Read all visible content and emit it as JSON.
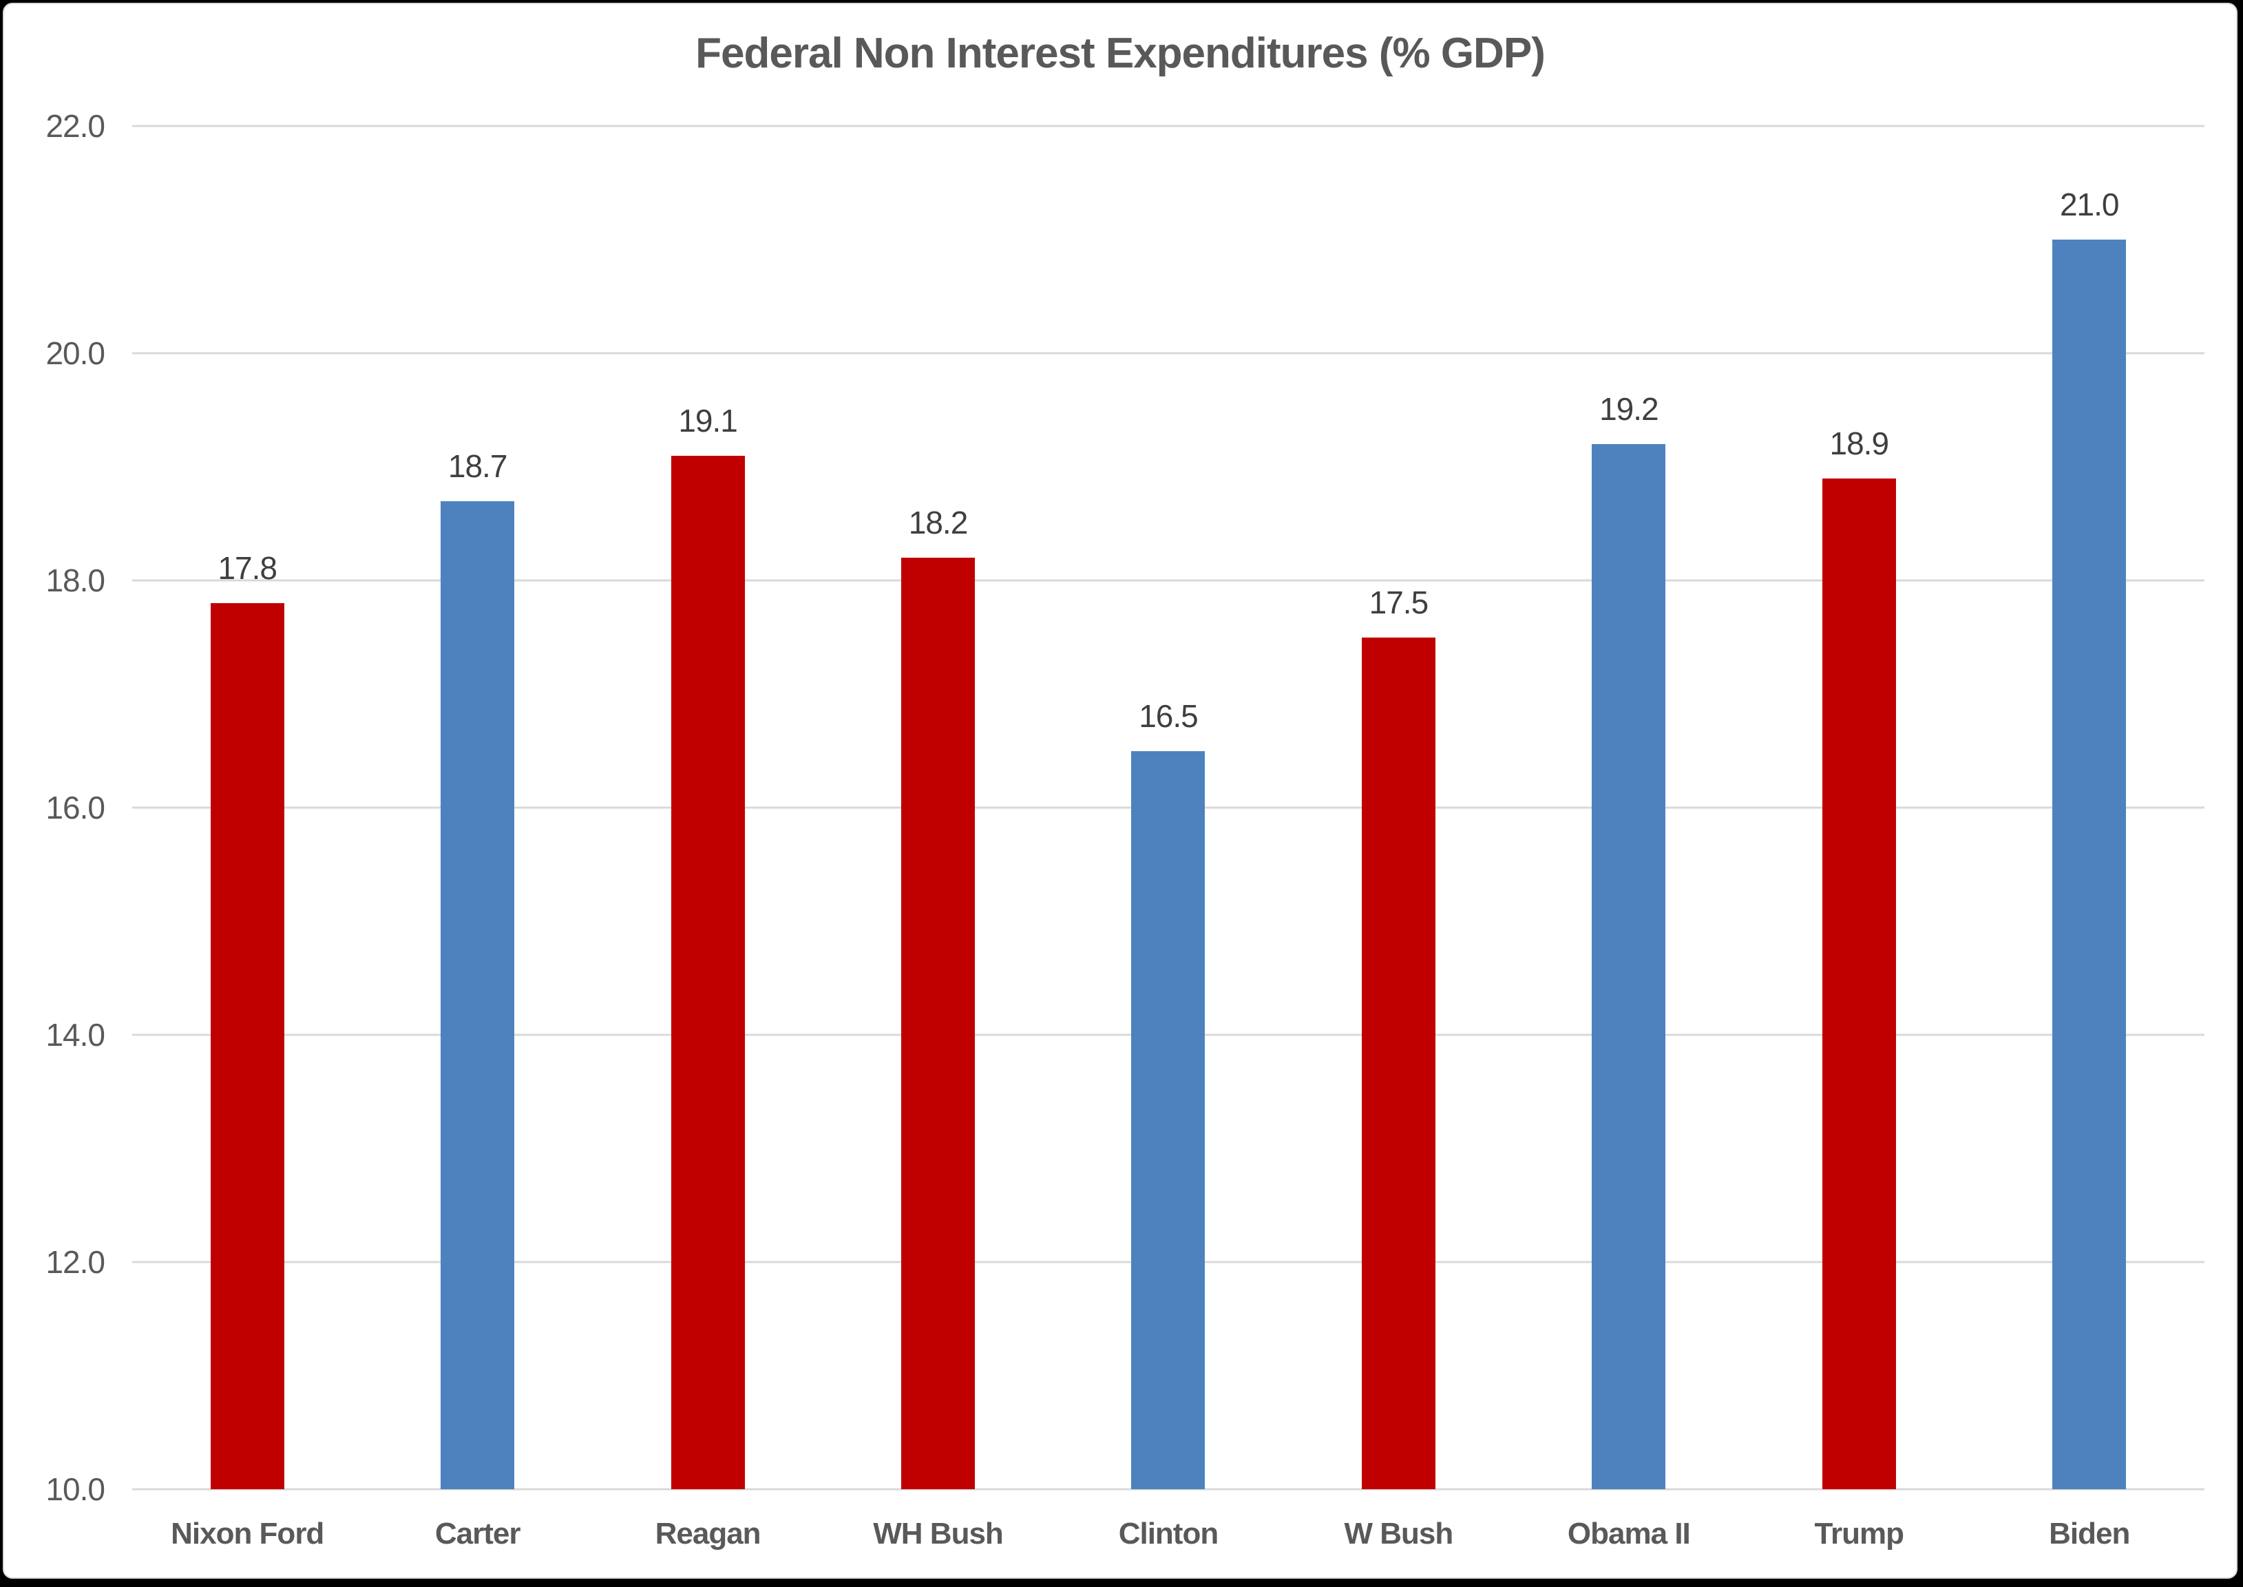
{
  "chart_data": {
    "type": "bar",
    "title": "Federal Non Interest Expenditures (% GDP)",
    "categories": [
      "Nixon Ford",
      "Carter",
      "Reagan",
      "WH Bush",
      "Clinton",
      "W Bush",
      "Obama II",
      "Trump",
      "Biden"
    ],
    "values": [
      17.8,
      18.7,
      19.1,
      18.2,
      16.5,
      17.5,
      19.2,
      18.9,
      21.0
    ],
    "data_labels": [
      "17.8",
      "18.7",
      "19.1",
      "18.2",
      "16.5",
      "17.5",
      "19.2",
      "18.9",
      "21.0"
    ],
    "bar_colors": [
      "#C00000",
      "#4E82BE",
      "#C00000",
      "#C00000",
      "#4E82BE",
      "#C00000",
      "#4E82BE",
      "#C00000",
      "#4E82BE"
    ],
    "ylim": [
      10.0,
      22.0
    ],
    "ytick_values": [
      10,
      12,
      14,
      16,
      18,
      20,
      22
    ],
    "ytick_labels": [
      "10.0",
      "12.0",
      "14.0",
      "16.0",
      "18.0",
      "20.0",
      "22.0"
    ],
    "grid": true,
    "legend": "none",
    "colors": {
      "red_bar": "#C00000",
      "blue_bar": "#4E82BE",
      "gridline": "#D9D9D9",
      "axis_label": "#595959",
      "data_label": "#3F3F3F",
      "title": "#595959",
      "background": "#FFFFFF"
    }
  }
}
